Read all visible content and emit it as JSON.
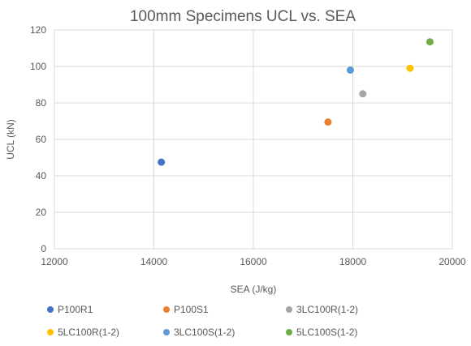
{
  "chart_data": {
    "type": "scatter",
    "title": "100mm Specimens UCL vs. SEA",
    "xlabel": "SEA (J/kg)",
    "ylabel": "UCL (kN)",
    "xlim": [
      12000,
      20000
    ],
    "ylim": [
      0,
      120
    ],
    "x_ticks": [
      12000,
      14000,
      16000,
      18000,
      20000
    ],
    "y_ticks": [
      0,
      20,
      40,
      60,
      80,
      100,
      120
    ],
    "grid": "on",
    "legend_position": "bottom",
    "series": [
      {
        "name": "P100R1",
        "color": "#4472c4",
        "x": [
          14150
        ],
        "y": [
          47.5
        ]
      },
      {
        "name": "P100S1",
        "color": "#ed7d31",
        "x": [
          17500
        ],
        "y": [
          69.5
        ]
      },
      {
        "name": "3LC100R(1-2)",
        "color": "#a5a5a5",
        "x": [
          18200
        ],
        "y": [
          85
        ]
      },
      {
        "name": "5LC100R(1-2)",
        "color": "#ffc000",
        "x": [
          19150
        ],
        "y": [
          99
        ]
      },
      {
        "name": "3LC100S(1-2)",
        "color": "#5b9bd5",
        "x": [
          17950
        ],
        "y": [
          98
        ]
      },
      {
        "name": "5LC100S(1-2)",
        "color": "#70ad47",
        "x": [
          19550
        ],
        "y": [
          113.5
        ]
      }
    ]
  }
}
